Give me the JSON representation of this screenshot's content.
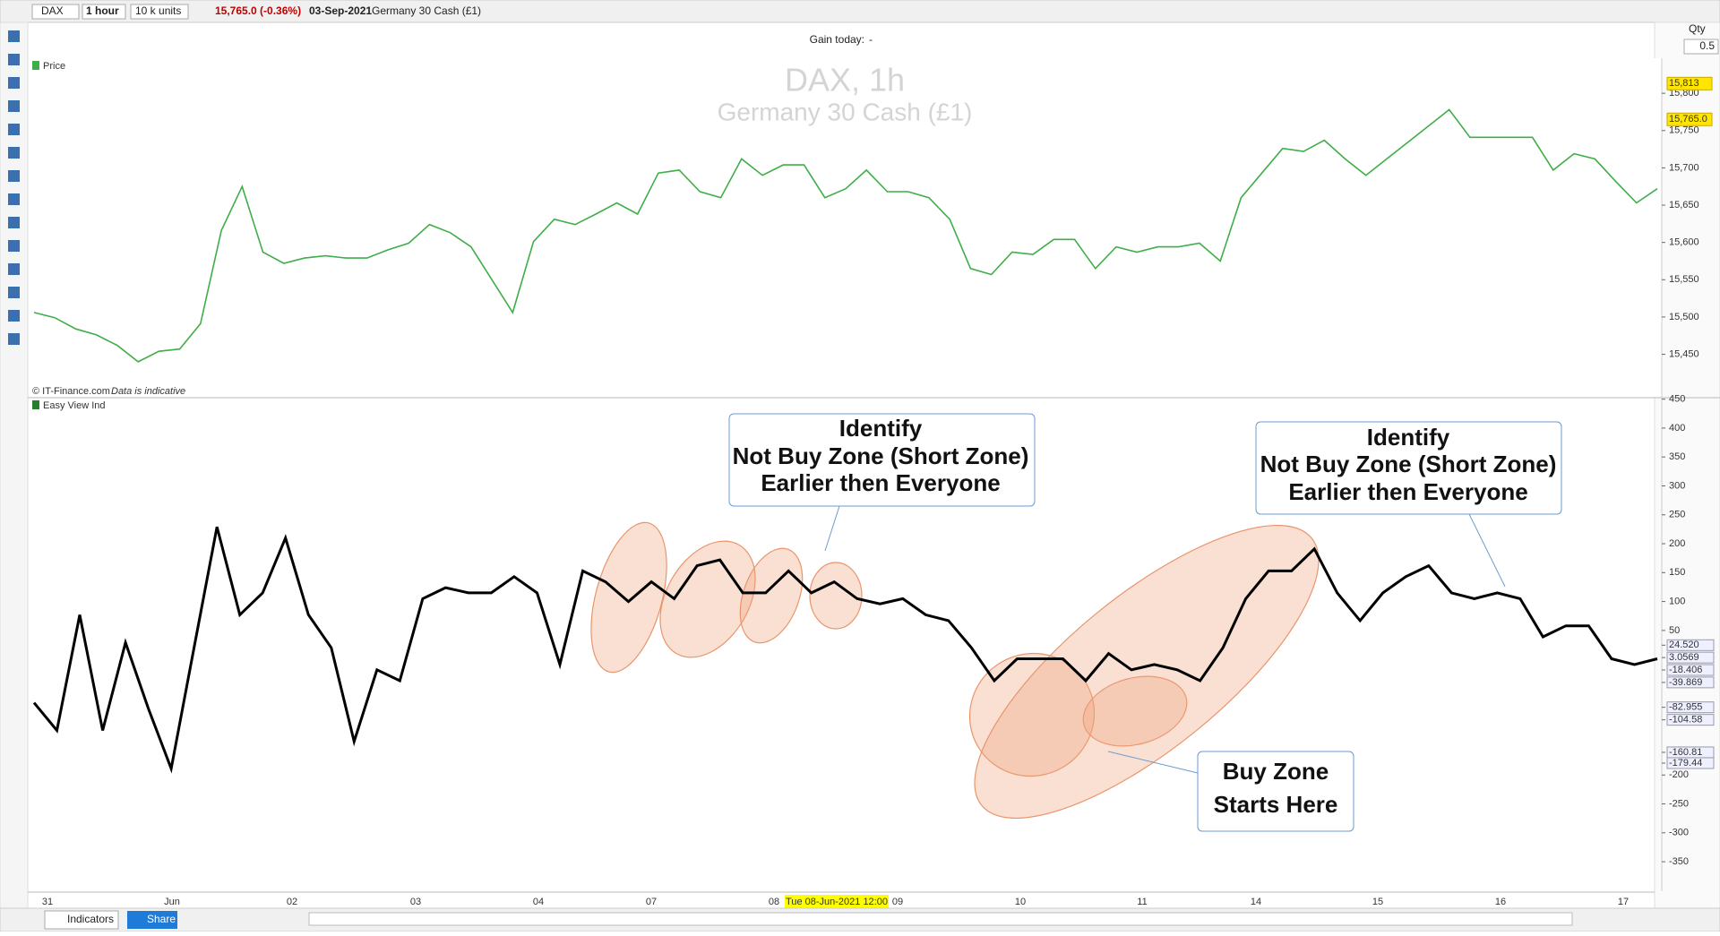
{
  "toolbar": {
    "symbol": "DAX",
    "interval": "1 hour",
    "size": "10 k units",
    "price": "15,765.0 (-0.36%)",
    "date": "03-Sep-2021",
    "instrument": "Germany 30 Cash (£1)",
    "gain_label": "Gain today:",
    "gain_value": "-",
    "qty_label": "Qty",
    "qty_value": "0.5"
  },
  "chart_data": [
    {
      "type": "line",
      "title": "DAX, 1h",
      "subtitle": "Germany 30 Cash (£1)",
      "legend": "Price",
      "source": "© IT-Finance.com",
      "note": "Data is indicative",
      "series": [
        {
          "name": "Price",
          "color": "#3fae49",
          "values": [
            15506,
            15499,
            15484,
            15476,
            15462,
            15440,
            15454,
            15457,
            15491,
            15616,
            15675,
            15587,
            15572,
            15579,
            15582,
            15579,
            15579,
            15590,
            15599,
            15624,
            15613,
            15594,
            15550,
            15506,
            15601,
            15631,
            15624,
            15638,
            15653,
            15638,
            15693,
            15697,
            15668,
            15660,
            15712,
            15690,
            15704,
            15704,
            15660,
            15672,
            15697,
            15668,
            15668,
            15660,
            15631,
            15565,
            15557,
            15587,
            15584,
            15604,
            15604,
            15565,
            15594,
            15587,
            15594,
            15594,
            15599,
            15575,
            15660,
            15693,
            15726,
            15722,
            15737,
            15712,
            15690,
            15712,
            15734,
            15756,
            15778,
            15741,
            15741,
            15741,
            15741,
            15697,
            15719,
            15712,
            15682,
            15653,
            15672
          ]
        }
      ],
      "ylim": [
        15393,
        15847
      ],
      "yticks": [
        {
          "value": 15450,
          "label": "15,450"
        },
        {
          "value": 15500,
          "label": "15,500"
        },
        {
          "value": 15550,
          "label": "15,550"
        },
        {
          "value": 15600,
          "label": "15,600"
        },
        {
          "value": 15650,
          "label": "15,650"
        },
        {
          "value": 15700,
          "label": "15,700"
        },
        {
          "value": 15750,
          "label": "15,750"
        },
        {
          "value": 15800,
          "label": "15,800"
        }
      ],
      "price_markers": [
        {
          "value": 15813,
          "label": "15,813"
        },
        {
          "value": 15765,
          "label": "15,765.0"
        }
      ]
    },
    {
      "type": "line",
      "legend": "Easy View Ind",
      "series": [
        {
          "name": "Easy View Ind",
          "color": "#000000",
          "values": [
            -75,
            -123,
            77,
            -123,
            29,
            -85,
            -189,
            20,
            229,
            77,
            115,
            210,
            77,
            20,
            -142,
            -18,
            -37,
            105,
            124,
            115,
            115,
            143,
            115,
            -9,
            153,
            134,
            100,
            134,
            105,
            162,
            172,
            115,
            115,
            153,
            115,
            134,
            105,
            96,
            105,
            77,
            67,
            20,
            -37,
            1,
            1,
            1,
            -37,
            10,
            -18,
            -9,
            -18,
            -37,
            20,
            105,
            153,
            153,
            191,
            115,
            67,
            115,
            143,
            162,
            115,
            105,
            115,
            105,
            39,
            58,
            58,
            1,
            -9,
            1
          ]
        }
      ],
      "ylim": [
        -401,
        451
      ],
      "yticks": [
        450,
        400,
        350,
        300,
        250,
        200,
        150,
        100,
        50,
        {
          "value": 24.52,
          "label": "24.520"
        },
        3.0569,
        -18.406,
        -39.869,
        -82.955,
        -104.58,
        -160.81,
        -179.44,
        -200,
        -250,
        -300,
        -350
      ],
      "x_labels": [
        "31",
        "Jun",
        "02",
        "03",
        "04",
        "07",
        "08",
        "09",
        "10",
        "11",
        "14",
        "15",
        "16",
        "17"
      ],
      "cursor_label": "Tue 08-Jun-2021 12:00"
    }
  ],
  "annotations": [
    {
      "lines": [
        "Identify",
        "Not Buy Zone (Short Zone)",
        "Earlier then Everyone"
      ]
    },
    {
      "lines": [
        "Identify",
        "Not Buy Zone (Short Zone)",
        "Earlier then Everyone"
      ]
    },
    {
      "lines": [
        "Buy Zone",
        "Starts Here"
      ]
    }
  ],
  "bottom_bar": {
    "indicators": "Indicators",
    "share": "Share"
  }
}
